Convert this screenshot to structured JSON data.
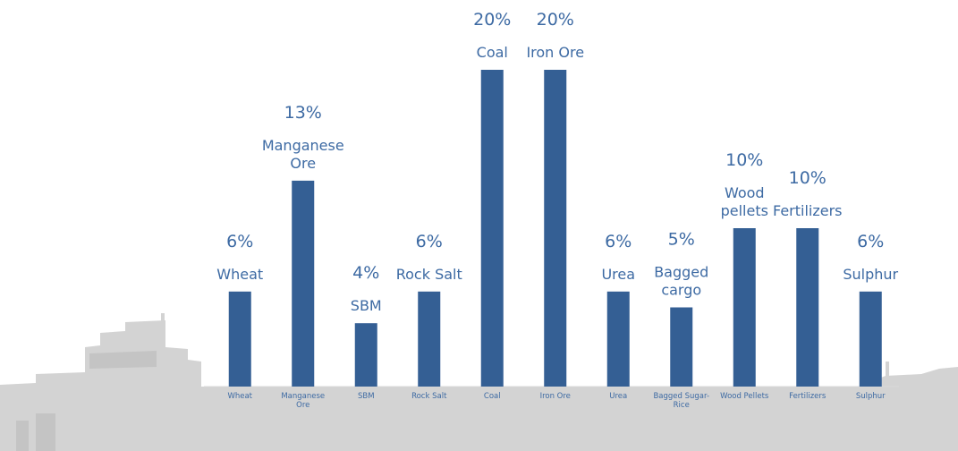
{
  "chart_data": {
    "type": "bar",
    "categories": [
      "Wheat",
      "Manganese Ore",
      "SBM",
      "Rock Salt",
      "Coal",
      "Iron Ore",
      "Urea",
      "Bagged Sugar-Rice",
      "Wood Pellets",
      "Fertilizers",
      "Sulphur"
    ],
    "tick_labels": [
      [
        "Wheat"
      ],
      [
        "Manganese",
        "Ore"
      ],
      [
        "SBM"
      ],
      [
        "Rock Salt"
      ],
      [
        "Coal"
      ],
      [
        "Iron Ore"
      ],
      [
        "Urea"
      ],
      [
        "Bagged Sugar-",
        "Rice"
      ],
      [
        "Wood Pellets"
      ],
      [
        "Fertilizers"
      ],
      [
        "Sulphur"
      ]
    ],
    "values": [
      6,
      13,
      4,
      6,
      20,
      20,
      6,
      5,
      10,
      10,
      6
    ],
    "percent_labels": [
      "6%",
      "13%",
      "4%",
      "6%",
      "20%",
      "20%",
      "6%",
      "5%",
      "10%",
      "10%",
      "6%"
    ],
    "bar_name_labels": [
      [
        "Wheat"
      ],
      [
        "Manganese",
        "Ore"
      ],
      [
        "SBM"
      ],
      [
        "Rock Salt"
      ],
      [
        "Coal"
      ],
      [
        "Iron Ore"
      ],
      [
        "Urea"
      ],
      [
        "Bagged",
        "cargo"
      ],
      [
        "Wood",
        "pellets"
      ],
      [
        "Fertilizers"
      ],
      [
        "Sulphur"
      ]
    ],
    "ylim": [
      0,
      20
    ],
    "bar_color": "#345f94",
    "label_color": "#3d6aa3",
    "grid": false,
    "legend": "none"
  }
}
